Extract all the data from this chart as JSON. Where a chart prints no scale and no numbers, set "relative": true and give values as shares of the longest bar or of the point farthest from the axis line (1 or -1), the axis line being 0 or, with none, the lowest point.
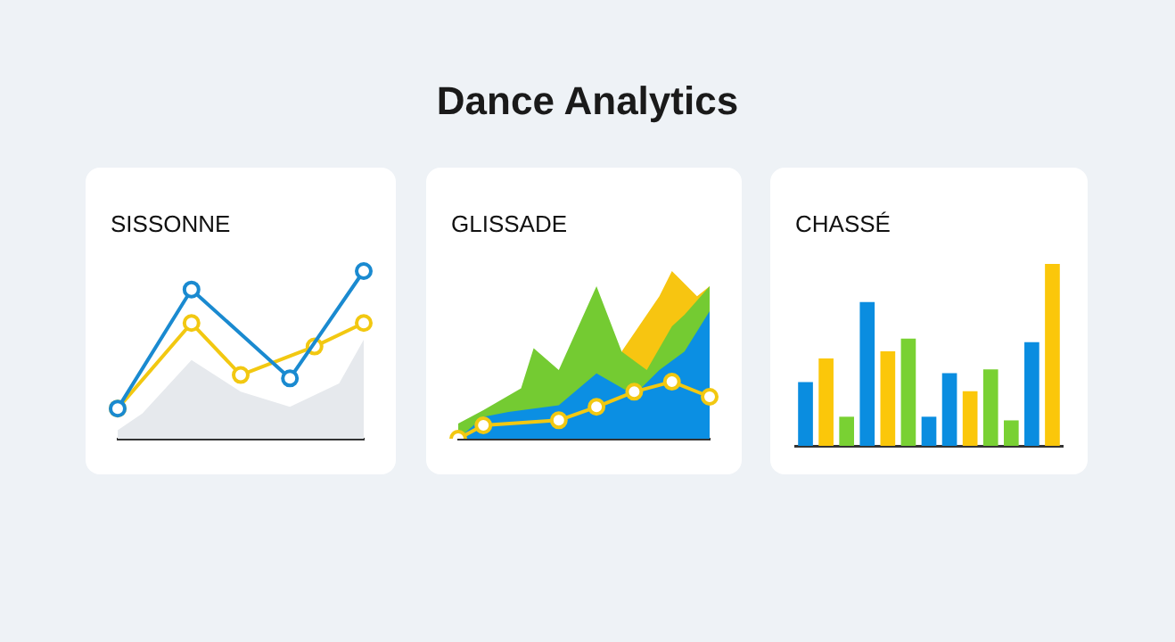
{
  "chart_data": [
    {
      "type": "line",
      "title": "SISSONNE",
      "annotations": [
        "Dance Analytics"
      ],
      "relative": true,
      "tick_labels": false,
      "legend": false,
      "line_style": "solid",
      "categories": [
        null,
        null,
        null,
        null,
        null,
        null,
        null,
        null,
        null,
        null,
        null
      ],
      "series": [
        {
          "type": "area",
          "color": "#e6e9ed",
          "values": [
            0.05,
            0.15,
            null,
            0.47,
            null,
            0.28,
            null,
            0.19,
            null,
            0.33,
            0.59
          ]
        },
        {
          "color": "#f2c811",
          "marker": "circle",
          "values": [
            0.18,
            null,
            null,
            0.69,
            null,
            0.38,
            null,
            null,
            0.55,
            null,
            0.69
          ]
        },
        {
          "color": "#1a8ad0",
          "marker": "circle",
          "values": [
            0.18,
            null,
            null,
            0.89,
            null,
            null,
            null,
            0.36,
            null,
            null,
            1
          ]
        }
      ]
    },
    {
      "type": "area",
      "title": "GLISSADE",
      "relative": true,
      "tick_labels": false,
      "legend": false,
      "line_style": "solid",
      "categories": [
        null,
        null,
        null,
        null,
        null,
        null,
        null,
        null,
        null,
        null,
        null,
        null,
        null,
        null,
        null,
        null,
        null,
        null,
        null,
        null,
        null
      ],
      "series": [
        {
          "color": "#f7c511",
          "values": [
            null,
            null,
            null,
            null,
            null,
            null,
            null,
            null,
            null,
            null,
            null,
            null,
            null,
            0.52,
            null,
            null,
            0.85,
            1,
            null,
            0.85,
            0.91
          ]
        },
        {
          "color": "#74cb32",
          "values": [
            0.09,
            null,
            0.17,
            null,
            null,
            0.3,
            0.54,
            null,
            0.41,
            null,
            null,
            0.91,
            null,
            0.52,
            null,
            0.41,
            null,
            0.67,
            0.74,
            null,
            0.91
          ]
        },
        {
          "color": "#0b8fe3",
          "values": [
            0,
            null,
            0.13,
            null,
            0.16,
            null,
            null,
            null,
            0.2,
            null,
            null,
            0.39,
            null,
            null,
            0.26,
            null,
            0.41,
            null,
            0.52,
            null,
            0.76
          ]
        },
        {
          "type": "line",
          "color": "#f2c811",
          "marker": "circle",
          "values": [
            0,
            null,
            0.08,
            null,
            null,
            null,
            null,
            null,
            0.11,
            null,
            null,
            0.19,
            null,
            null,
            0.28,
            null,
            null,
            0.34,
            null,
            null,
            0.25
          ]
        }
      ]
    },
    {
      "type": "bar",
      "title": "CHASSÉ",
      "relative": true,
      "legend": false,
      "tick_labels": false,
      "categories": [
        null,
        null,
        null,
        null,
        null,
        null,
        null,
        null,
        null,
        null,
        null,
        null,
        null
      ],
      "values": [
        0.35,
        0.48,
        0.16,
        0.79,
        0.52,
        0.59,
        0.16,
        0.4,
        0.3,
        0.42,
        0.14,
        0.57,
        1
      ],
      "colors": [
        "#0a8de0",
        "#fbc70a",
        "#79d133",
        "#0a8de0",
        "#fbc70a",
        "#79d133",
        "#0a8de0",
        "#0a8de0",
        "#fbc70a",
        "#79d133",
        "#79d133",
        "#0a8de0",
        "#fbc70a"
      ]
    }
  ]
}
